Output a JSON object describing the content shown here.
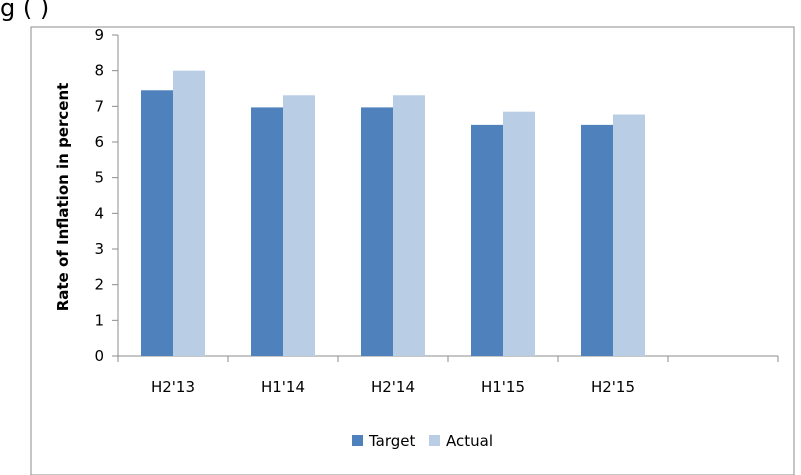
{
  "chart_data": {
    "type": "bar",
    "title_visible_fragment": "g                    (              )",
    "categories": [
      "H2'13",
      "H1'14",
      "H2'14",
      "H1'15",
      "H2'15",
      ""
    ],
    "series": [
      {
        "name": "Target",
        "color": "#4F81BD",
        "values": [
          7.45,
          6.97,
          6.97,
          6.48,
          6.48,
          null
        ]
      },
      {
        "name": "Actual",
        "color": "#B9CDE5",
        "values": [
          8.0,
          7.31,
          7.31,
          6.85,
          6.77,
          null
        ]
      }
    ],
    "ylabel": "Rate of Inflation in percent",
    "xlabel": "",
    "ylim": [
      0,
      9
    ],
    "yticks": [
      0,
      1,
      2,
      3,
      4,
      5,
      6,
      7,
      8,
      9
    ],
    "grid": false,
    "legend_position": "bottom"
  }
}
